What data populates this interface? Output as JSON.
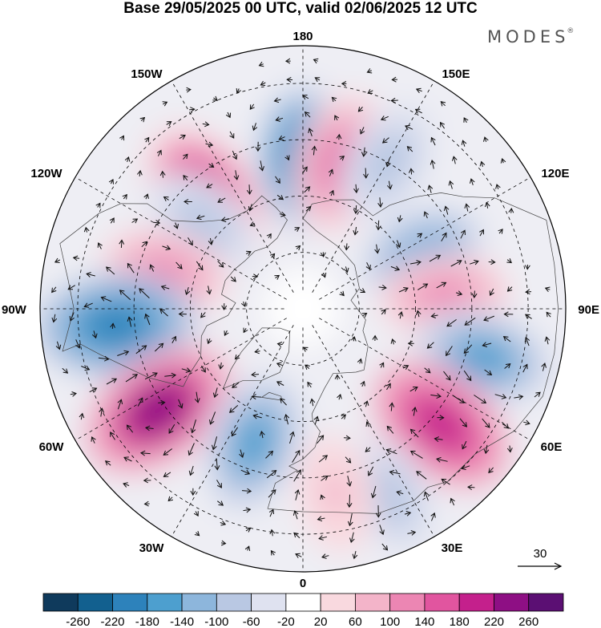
{
  "title": "Base 29/05/2025 00 UTC, valid 02/06/2025 12 UTC",
  "brand": "MODES",
  "brand_mark": "®",
  "longitude_labels": {
    "top": "180",
    "bottom": "0",
    "left": "90W",
    "right": "90E",
    "upper_left_1": "150W",
    "upper_left_2": "120W",
    "upper_right_1": "150E",
    "upper_right_2": "120E",
    "lower_left_1": "60W",
    "lower_left_2": "30W",
    "lower_right_1": "60E",
    "lower_right_2": "30E"
  },
  "vector_reference": {
    "label": "30"
  },
  "colorbar": {
    "tick_labels": [
      "-260",
      "-220",
      "-180",
      "-140",
      "-100",
      "-60",
      "-20",
      "20",
      "60",
      "100",
      "140",
      "180",
      "220",
      "260"
    ],
    "colors": [
      "#0f3a5c",
      "#12608f",
      "#2d82bb",
      "#4d9fcf",
      "#8db6dc",
      "#b9c8e3",
      "#dfe2f0",
      "#ffffff",
      "#f9d9df",
      "#f3b4c9",
      "#ec86b3",
      "#e1559f",
      "#c4208c",
      "#8e0f84",
      "#5b0f73"
    ]
  },
  "anomaly_centers": [
    {
      "value": -200,
      "lon": 180,
      "lat": 50
    },
    {
      "value": 190,
      "lon": -140,
      "lat": 50
    },
    {
      "value": 150,
      "lon": 165,
      "lat": 50
    },
    {
      "value": -100,
      "lon": 150,
      "lat": 45
    },
    {
      "value": -100,
      "lon": -130,
      "lat": 55
    },
    {
      "value": 110,
      "lon": -105,
      "lat": 52
    },
    {
      "value": -210,
      "lon": -85,
      "lat": 40
    },
    {
      "value": 230,
      "lon": -55,
      "lat": 43
    },
    {
      "value": -170,
      "lon": -20,
      "lat": 52
    },
    {
      "value": -130,
      "lon": 115,
      "lat": 55
    },
    {
      "value": 110,
      "lon": 95,
      "lat": 52
    },
    {
      "value": -160,
      "lon": 75,
      "lat": 40
    },
    {
      "value": 210,
      "lon": 50,
      "lat": 42
    },
    {
      "value": -90,
      "lon": 25,
      "lat": 35
    },
    {
      "value": 70,
      "lon": 10,
      "lat": 40
    }
  ]
}
